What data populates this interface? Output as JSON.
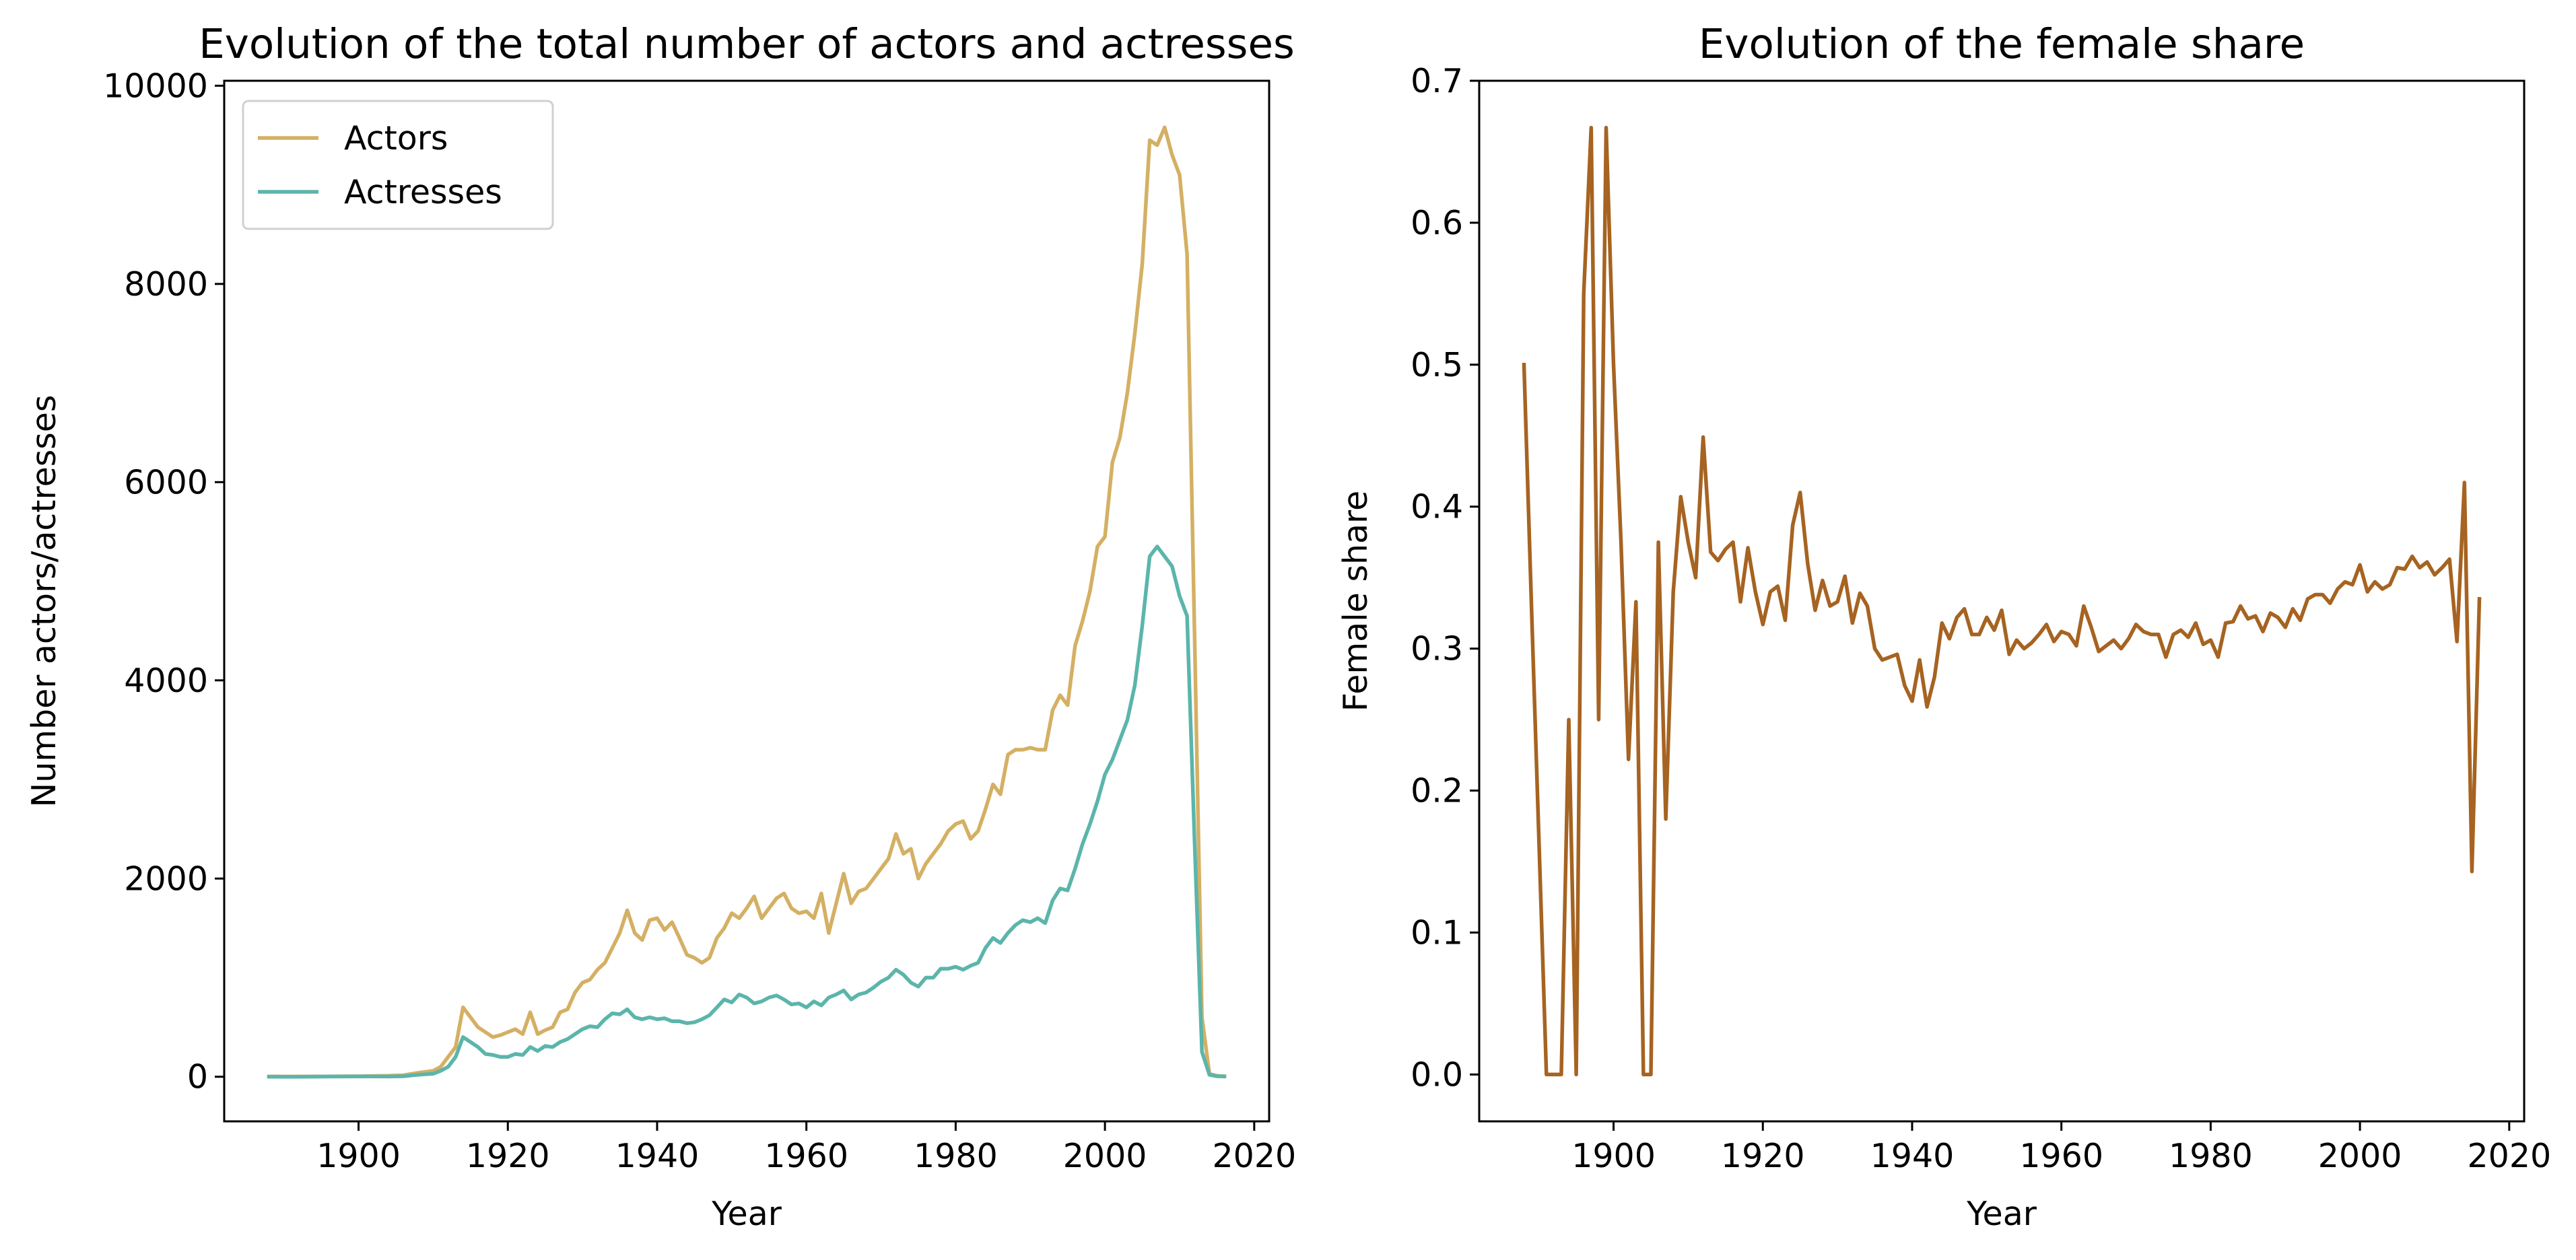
{
  "chart_data": [
    {
      "type": "line",
      "title": "Evolution of the total number of actors and actresses",
      "xlabel": "Year",
      "ylabel": "Number actors/actresses",
      "xlim": [
        1882,
        2022
      ],
      "ylim": [
        -450,
        10050
      ],
      "xticks": [
        1900,
        1920,
        1940,
        1960,
        1980,
        2000,
        2020
      ],
      "yticks": [
        0,
        2000,
        4000,
        6000,
        8000,
        10000
      ],
      "grid": false,
      "legend": "upper left",
      "series": [
        {
          "name": "Actors",
          "color": "#d4b064",
          "x": [
            1888,
            1890,
            1892,
            1894,
            1896,
            1898,
            1900,
            1902,
            1904,
            1906,
            1908,
            1910,
            1911,
            1912,
            1913,
            1914,
            1915,
            1916,
            1917,
            1918,
            1919,
            1920,
            1921,
            1922,
            1923,
            1924,
            1925,
            1926,
            1927,
            1928,
            1929,
            1930,
            1931,
            1932,
            1933,
            1934,
            1935,
            1936,
            1937,
            1938,
            1939,
            1940,
            1941,
            1942,
            1943,
            1944,
            1945,
            1946,
            1947,
            1948,
            1949,
            1950,
            1951,
            1952,
            1953,
            1954,
            1955,
            1956,
            1957,
            1958,
            1959,
            1960,
            1961,
            1962,
            1963,
            1964,
            1965,
            1966,
            1967,
            1968,
            1969,
            1970,
            1971,
            1972,
            1973,
            1974,
            1975,
            1976,
            1977,
            1978,
            1979,
            1980,
            1981,
            1982,
            1983,
            1984,
            1985,
            1986,
            1987,
            1988,
            1989,
            1990,
            1991,
            1992,
            1993,
            1994,
            1995,
            1996,
            1997,
            1998,
            1999,
            2000,
            2001,
            2002,
            2003,
            2004,
            2005,
            2006,
            2007,
            2008,
            2009,
            2010,
            2011,
            2012,
            2013,
            2014,
            2015,
            2016
          ],
          "values": [
            2,
            2,
            2,
            3,
            3,
            5,
            5,
            8,
            10,
            15,
            40,
            60,
            100,
            200,
            300,
            700,
            600,
            500,
            450,
            400,
            420,
            450,
            480,
            430,
            650,
            430,
            470,
            500,
            650,
            680,
            850,
            950,
            980,
            1080,
            1150,
            1300,
            1450,
            1680,
            1450,
            1380,
            1580,
            1600,
            1480,
            1560,
            1400,
            1230,
            1200,
            1150,
            1200,
            1400,
            1500,
            1650,
            1600,
            1700,
            1820,
            1600,
            1700,
            1800,
            1850,
            1700,
            1650,
            1670,
            1600,
            1850,
            1450,
            1750,
            2050,
            1750,
            1870,
            1900,
            2000,
            2100,
            2200,
            2450,
            2250,
            2300,
            2000,
            2150,
            2250,
            2350,
            2480,
            2550,
            2580,
            2400,
            2480,
            2700,
            2950,
            2850,
            3250,
            3300,
            3300,
            3320,
            3300,
            3300,
            3700,
            3850,
            3750,
            4350,
            4600,
            4900,
            5350,
            5450,
            6200,
            6450,
            6900,
            7500,
            8200,
            9450,
            9400,
            9580,
            9300,
            9100,
            8300,
            4500,
            600,
            30,
            10,
            5
          ]
        },
        {
          "name": "Actresses",
          "color": "#5bb5ab",
          "x": [
            1888,
            1890,
            1892,
            1894,
            1896,
            1898,
            1900,
            1902,
            1904,
            1906,
            1908,
            1910,
            1911,
            1912,
            1913,
            1914,
            1915,
            1916,
            1917,
            1918,
            1919,
            1920,
            1921,
            1922,
            1923,
            1924,
            1925,
            1926,
            1927,
            1928,
            1929,
            1930,
            1931,
            1932,
            1933,
            1934,
            1935,
            1936,
            1937,
            1938,
            1939,
            1940,
            1941,
            1942,
            1943,
            1944,
            1945,
            1946,
            1947,
            1948,
            1949,
            1950,
            1951,
            1952,
            1953,
            1954,
            1955,
            1956,
            1957,
            1958,
            1959,
            1960,
            1961,
            1962,
            1963,
            1964,
            1965,
            1966,
            1967,
            1968,
            1969,
            1970,
            1971,
            1972,
            1973,
            1974,
            1975,
            1976,
            1977,
            1978,
            1979,
            1980,
            1981,
            1982,
            1983,
            1984,
            1985,
            1986,
            1987,
            1988,
            1989,
            1990,
            1991,
            1992,
            1993,
            1994,
            1995,
            1996,
            1997,
            1998,
            1999,
            2000,
            2001,
            2002,
            2003,
            2004,
            2005,
            2006,
            2007,
            2008,
            2009,
            2010,
            2011,
            2012,
            2013,
            2014,
            2015,
            2016
          ],
          "values": [
            1,
            0,
            0,
            1,
            2,
            2,
            3,
            4,
            2,
            5,
            20,
            30,
            60,
            100,
            200,
            400,
            350,
            300,
            230,
            220,
            200,
            200,
            230,
            220,
            300,
            260,
            310,
            300,
            350,
            380,
            430,
            480,
            510,
            500,
            580,
            640,
            630,
            680,
            600,
            580,
            600,
            580,
            590,
            560,
            560,
            540,
            550,
            580,
            620,
            700,
            780,
            750,
            830,
            800,
            740,
            760,
            800,
            820,
            780,
            730,
            740,
            700,
            760,
            720,
            800,
            830,
            870,
            780,
            830,
            850,
            900,
            960,
            1000,
            1080,
            1030,
            950,
            910,
            1000,
            1000,
            1090,
            1090,
            1110,
            1080,
            1120,
            1150,
            1300,
            1400,
            1350,
            1450,
            1530,
            1580,
            1560,
            1600,
            1550,
            1780,
            1900,
            1880,
            2100,
            2350,
            2550,
            2780,
            3050,
            3200,
            3400,
            3600,
            3950,
            4550,
            5250,
            5350,
            5250,
            5150,
            4850,
            4650,
            2400,
            250,
            20,
            5,
            3
          ]
        }
      ]
    },
    {
      "type": "line",
      "title": "Evolution of the female share",
      "xlabel": "Year",
      "ylabel": "Female share",
      "xlim": [
        1882,
        2022
      ],
      "ylim": [
        -0.033,
        0.7
      ],
      "xticks": [
        1900,
        1920,
        1940,
        1960,
        1980,
        2000,
        2020
      ],
      "yticks": [
        0.0,
        0.1,
        0.2,
        0.3,
        0.4,
        0.5,
        0.6,
        0.7
      ],
      "grid": false,
      "series": [
        {
          "color": "#a66321",
          "x": [
            1888,
            1889,
            1891,
            1892,
            1893,
            1894,
            1895,
            1896,
            1897,
            1898,
            1899,
            1900,
            1901,
            1902,
            1903,
            1904,
            1905,
            1906,
            1907,
            1908,
            1909,
            1910,
            1911,
            1912,
            1913,
            1914,
            1915,
            1916,
            1917,
            1918,
            1919,
            1920,
            1921,
            1922,
            1923,
            1924,
            1925,
            1926,
            1927,
            1928,
            1929,
            1930,
            1931,
            1932,
            1933,
            1934,
            1935,
            1936,
            1937,
            1938,
            1939,
            1940,
            1941,
            1942,
            1943,
            1944,
            1945,
            1946,
            1947,
            1948,
            1949,
            1950,
            1951,
            1952,
            1953,
            1954,
            1955,
            1956,
            1957,
            1958,
            1959,
            1960,
            1961,
            1962,
            1963,
            1964,
            1965,
            1966,
            1967,
            1968,
            1969,
            1970,
            1971,
            1972,
            1973,
            1974,
            1975,
            1976,
            1977,
            1978,
            1979,
            1980,
            1981,
            1982,
            1983,
            1984,
            1985,
            1986,
            1987,
            1988,
            1989,
            1990,
            1991,
            1992,
            1993,
            1994,
            1995,
            1996,
            1997,
            1998,
            1999,
            2000,
            2001,
            2002,
            2003,
            2004,
            2005,
            2006,
            2007,
            2008,
            2009,
            2010,
            2011,
            2012,
            2013,
            2014,
            2015,
            2016
          ],
          "values": [
            0.5,
            0.33,
            0.0,
            0.0,
            0.0,
            0.25,
            0.0,
            0.55,
            0.667,
            0.25,
            0.667,
            0.5,
            0.375,
            0.222,
            0.333,
            0.0,
            0.0,
            0.375,
            0.18,
            0.34,
            0.407,
            0.375,
            0.35,
            0.449,
            0.368,
            0.362,
            0.37,
            0.375,
            0.333,
            0.371,
            0.34,
            0.317,
            0.34,
            0.344,
            0.32,
            0.387,
            0.41,
            0.36,
            0.327,
            0.348,
            0.33,
            0.333,
            0.351,
            0.318,
            0.339,
            0.33,
            0.3,
            0.292,
            0.294,
            0.296,
            0.274,
            0.263,
            0.292,
            0.259,
            0.28,
            0.318,
            0.307,
            0.322,
            0.328,
            0.31,
            0.31,
            0.322,
            0.313,
            0.327,
            0.296,
            0.306,
            0.3,
            0.304,
            0.31,
            0.317,
            0.305,
            0.312,
            0.31,
            0.302,
            0.33,
            0.315,
            0.298,
            0.302,
            0.306,
            0.3,
            0.307,
            0.317,
            0.312,
            0.31,
            0.31,
            0.294,
            0.31,
            0.313,
            0.308,
            0.318,
            0.303,
            0.306,
            0.294,
            0.318,
            0.319,
            0.33,
            0.321,
            0.323,
            0.312,
            0.325,
            0.322,
            0.315,
            0.328,
            0.32,
            0.335,
            0.338,
            0.338,
            0.332,
            0.342,
            0.347,
            0.345,
            0.359,
            0.34,
            0.347,
            0.342,
            0.345,
            0.357,
            0.356,
            0.365,
            0.357,
            0.361,
            0.352,
            0.357,
            0.363,
            0.305,
            0.417,
            0.143,
            0.335
          ]
        }
      ]
    }
  ]
}
